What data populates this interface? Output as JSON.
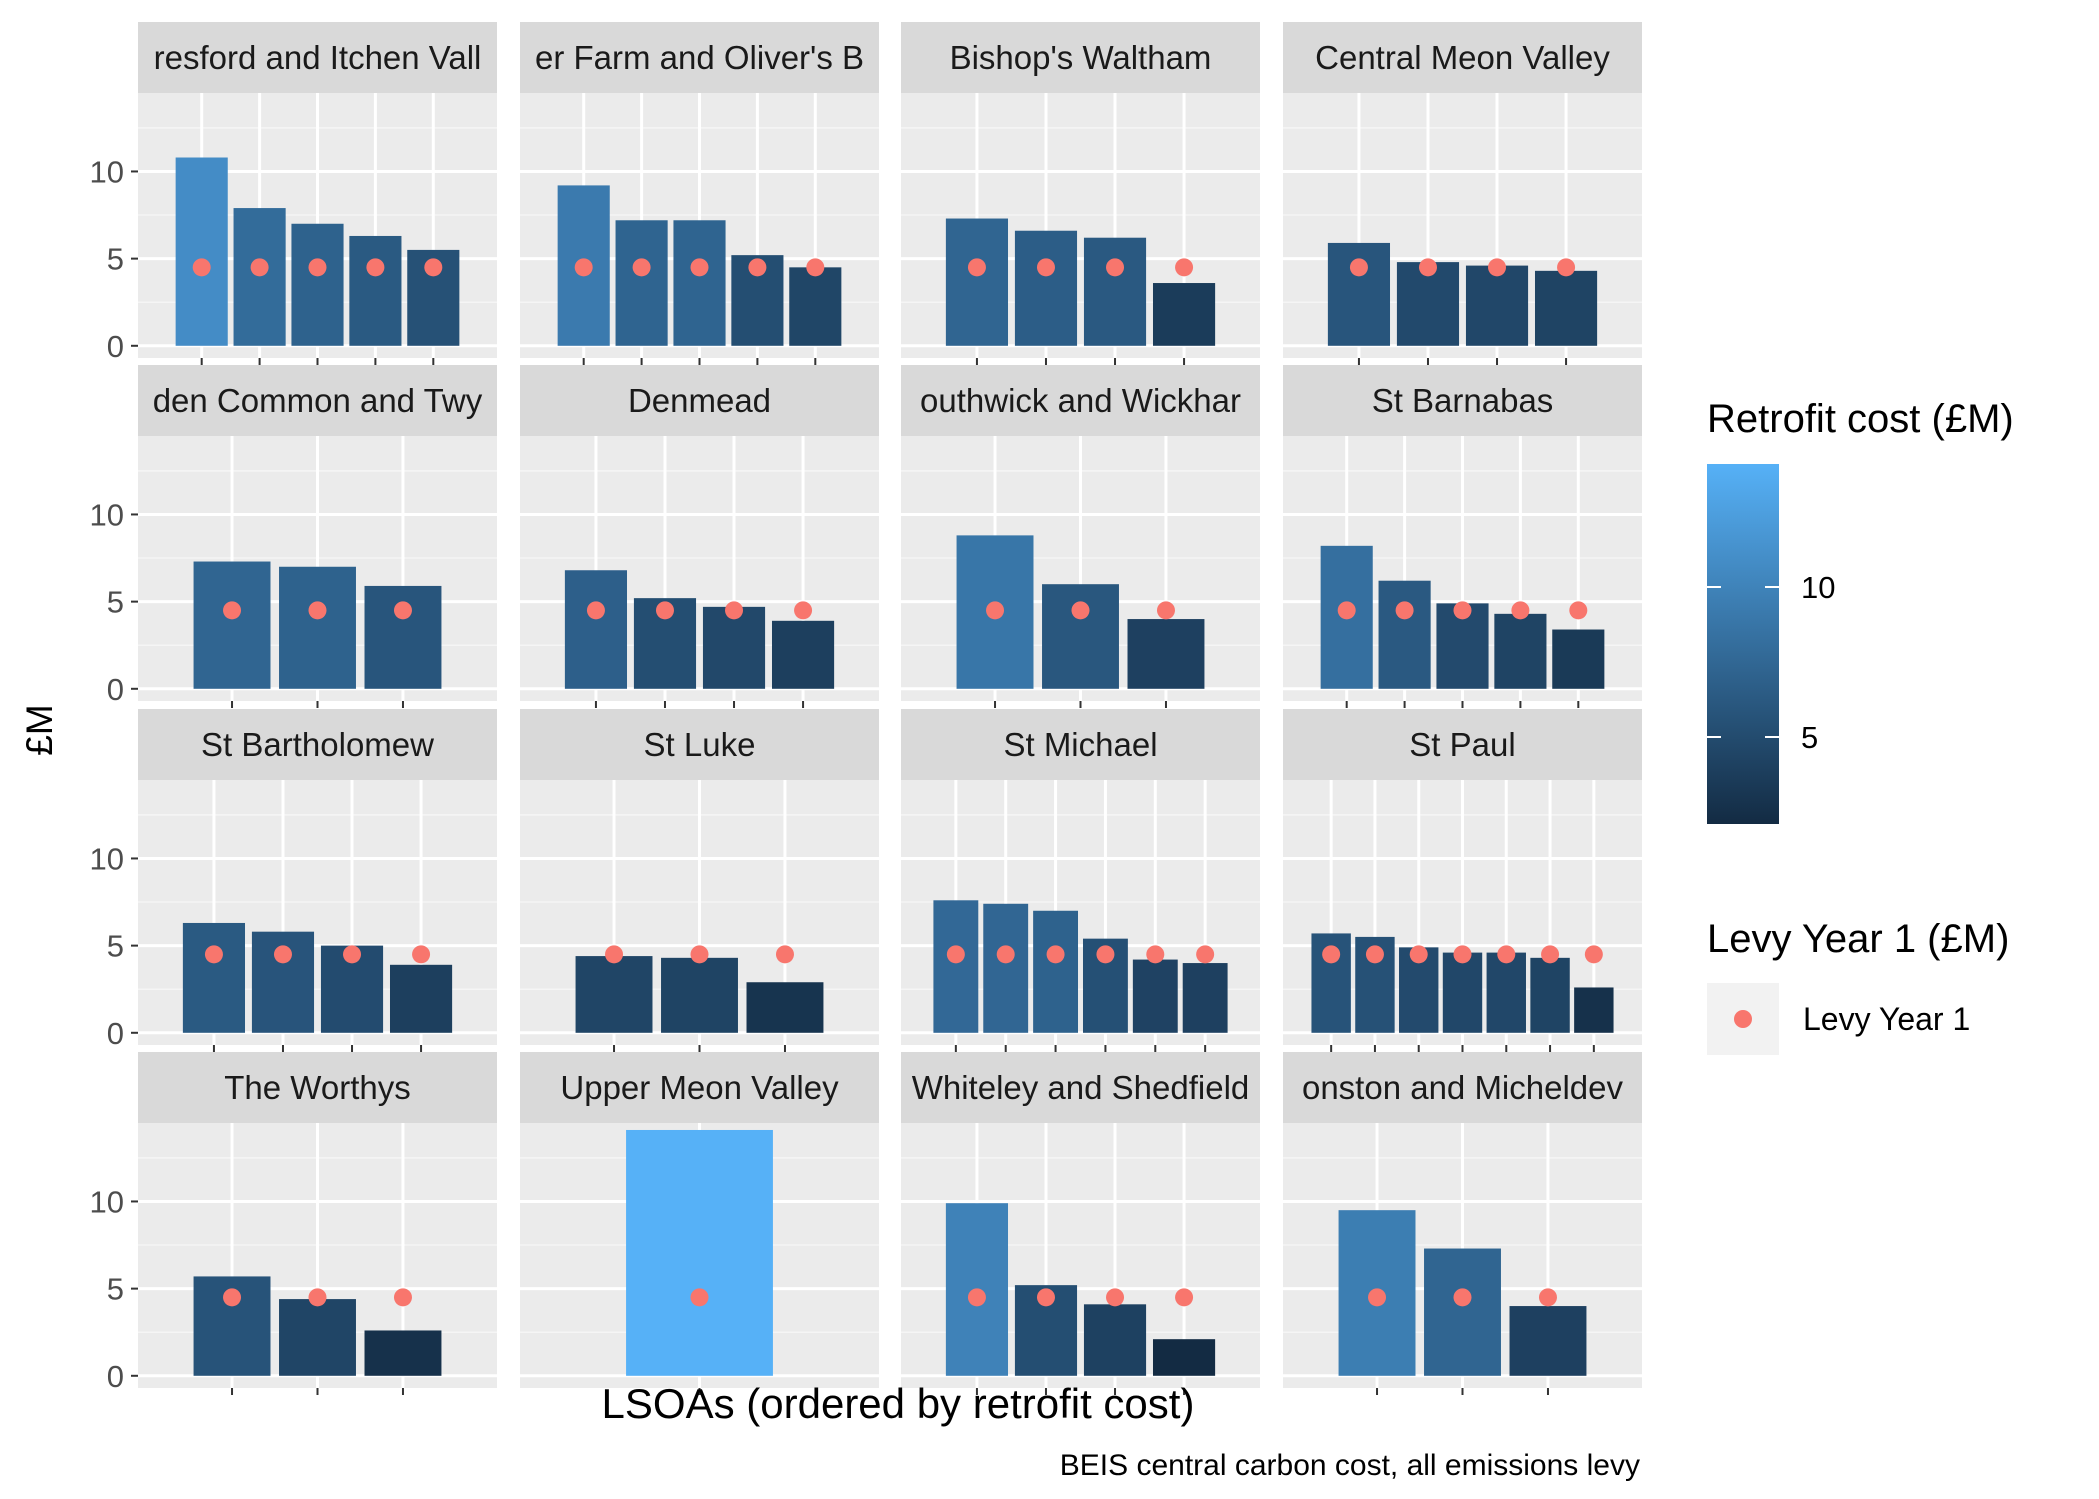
{
  "chart_data": {
    "type": "bar",
    "facet_titles_visible": [
      "resford and Itchen Vall",
      "er Farm and Oliver's B",
      "Bishop's Waltham",
      "Central Meon Valley",
      "den Common and Twy",
      "Denmead",
      "outhwick and Wickhar",
      "St Barnabas",
      "St Bartholomew",
      "St Luke",
      "St Michael",
      "St Paul",
      "The Worthys",
      "Upper Meon Valley",
      "Whiteley and Shedfield",
      "onston and Micheldev"
    ],
    "facets": [
      {
        "title": "resford and Itchen Vall",
        "values": [
          10.8,
          7.9,
          7.0,
          6.3,
          5.5
        ],
        "levy": [
          4.5,
          4.5,
          4.5,
          4.5,
          4.5
        ]
      },
      {
        "title": "er Farm and Oliver's B",
        "values": [
          9.2,
          7.2,
          7.2,
          5.2,
          4.5
        ],
        "levy": [
          4.5,
          4.5,
          4.5,
          4.5,
          4.5
        ]
      },
      {
        "title": "Bishop's Waltham",
        "values": [
          7.3,
          6.6,
          6.2,
          3.6
        ],
        "levy": [
          4.5,
          4.5,
          4.5,
          4.5
        ]
      },
      {
        "title": "Central Meon Valley",
        "values": [
          5.9,
          4.8,
          4.6,
          4.3
        ],
        "levy": [
          4.5,
          4.5,
          4.5,
          4.5
        ]
      },
      {
        "title": "den Common and Twy",
        "values": [
          7.3,
          7.0,
          5.9
        ],
        "levy": [
          4.5,
          4.5,
          4.5
        ]
      },
      {
        "title": "Denmead",
        "values": [
          6.8,
          5.2,
          4.7,
          3.9
        ],
        "levy": [
          4.5,
          4.5,
          4.5,
          4.5
        ]
      },
      {
        "title": "outhwick and Wickhar",
        "values": [
          8.8,
          6.0,
          4.0
        ],
        "levy": [
          4.5,
          4.5,
          4.5
        ]
      },
      {
        "title": "St Barnabas",
        "values": [
          8.2,
          6.2,
          4.9,
          4.3,
          3.4
        ],
        "levy": [
          4.5,
          4.5,
          4.5,
          4.5,
          4.5
        ]
      },
      {
        "title": "St Bartholomew",
        "values": [
          6.3,
          5.8,
          5.0,
          3.9
        ],
        "levy": [
          4.5,
          4.5,
          4.5,
          4.5
        ]
      },
      {
        "title": "St Luke",
        "values": [
          4.4,
          4.3,
          2.9
        ],
        "levy": [
          4.5,
          4.5,
          4.5
        ]
      },
      {
        "title": "St Michael",
        "values": [
          7.6,
          7.4,
          7.0,
          5.4,
          4.2,
          4.0
        ],
        "levy": [
          4.5,
          4.5,
          4.5,
          4.5,
          4.5,
          4.5
        ]
      },
      {
        "title": "St Paul",
        "values": [
          5.7,
          5.5,
          4.9,
          4.6,
          4.6,
          4.3,
          2.6
        ],
        "levy": [
          4.5,
          4.5,
          4.5,
          4.5,
          4.5,
          4.5,
          4.5
        ]
      },
      {
        "title": "The Worthys",
        "values": [
          5.7,
          4.4,
          2.6
        ],
        "levy": [
          4.5,
          4.5,
          4.5
        ]
      },
      {
        "title": "Upper Meon Valley",
        "values": [
          14.1
        ],
        "levy": [
          4.5
        ]
      },
      {
        "title": "Whiteley and Shedfield",
        "values": [
          9.9,
          5.2,
          4.1,
          2.1
        ],
        "levy": [
          4.5,
          4.5,
          4.5,
          4.5
        ]
      },
      {
        "title": "onston and Micheldev",
        "values": [
          9.5,
          7.3,
          4.0
        ],
        "levy": [
          4.5,
          4.5,
          4.5
        ]
      }
    ],
    "y_ticks": [
      "0",
      "5",
      "10"
    ],
    "y_tick_values": [
      0,
      5,
      10
    ],
    "ylim": [
      -0.7,
      14.5
    ],
    "xlabel": "LSOAs (ordered by retrofit cost)",
    "ylabel": "£M",
    "caption": "BEIS central carbon cost, all emissions levy",
    "legend": {
      "fill_title": "Retrofit cost (£M)",
      "fill_ticks": [
        "5",
        "10"
      ],
      "fill_tick_values": [
        5,
        10
      ],
      "fill_range": [
        2.1,
        14.1
      ],
      "fill_low_color": "#132B43",
      "fill_high_color": "#56B1F7",
      "point_title": "Levy Year 1 (£M)",
      "point_label": "Levy Year 1",
      "point_color": "#F8766D",
      "placement": "right"
    },
    "grid": true,
    "panel_background": "#EBEBEB",
    "strip_background": "#D9D9D9"
  }
}
